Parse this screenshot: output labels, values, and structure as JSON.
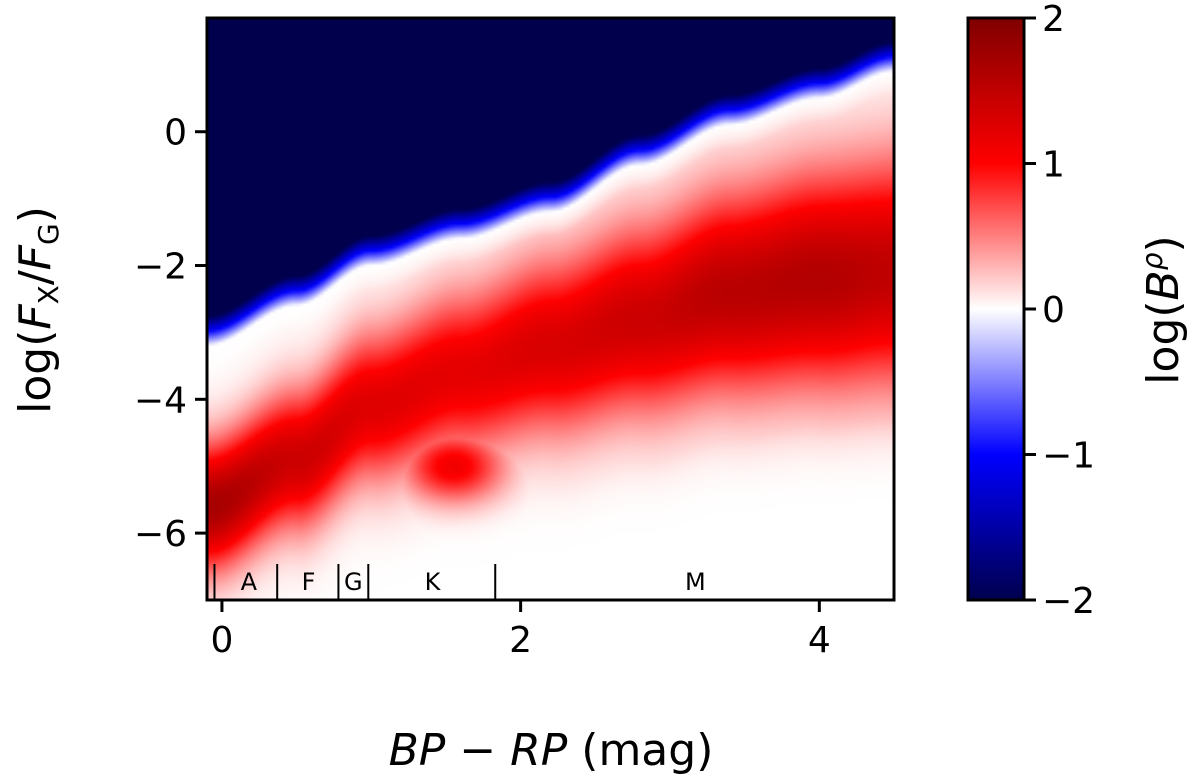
{
  "chart_data": {
    "type": "heatmap",
    "title": "",
    "xlabel": {
      "italic_part": "BP − RP",
      "unit_part": " (mag)"
    },
    "ylabel": {
      "prefix": "log(",
      "numerator": "F",
      "numerator_sub": "X",
      "slash": "/",
      "denominator": "F",
      "denominator_sub": "G",
      "suffix": ")"
    },
    "xlim": [
      -0.1,
      4.5
    ],
    "ylim": [
      -7.0,
      1.7
    ],
    "x_ticks": [
      {
        "value": 0,
        "label": "0"
      },
      {
        "value": 2,
        "label": "2"
      },
      {
        "value": 4,
        "label": "4"
      }
    ],
    "y_ticks": [
      {
        "value": 0,
        "label": "0"
      },
      {
        "value": -2,
        "label": "−2"
      },
      {
        "value": -4,
        "label": "−4"
      },
      {
        "value": -6,
        "label": "−6"
      }
    ],
    "colorbar": {
      "label": {
        "prefix": "log(",
        "base": "B",
        "sup": "ρ",
        "suffix": ")"
      },
      "range": [
        -2,
        2
      ],
      "ticks": [
        {
          "value": 2,
          "label": "2"
        },
        {
          "value": 1,
          "label": "1"
        },
        {
          "value": 0,
          "label": "0"
        },
        {
          "value": -1,
          "label": "−1"
        },
        {
          "value": -2,
          "label": "−2"
        }
      ],
      "colormap": "seismic",
      "colors": {
        "low": "#00004d",
        "mid_low": "#0000ff",
        "center": "#ffffff",
        "mid_high": "#ff0000",
        "high": "#800000"
      }
    },
    "spectral_types": {
      "boundaries": [
        -0.05,
        0.37,
        0.78,
        0.98,
        1.83
      ],
      "labels": [
        {
          "label": "A",
          "x": 0.18
        },
        {
          "label": "F",
          "x": 0.58
        },
        {
          "label": "G",
          "x": 0.88
        },
        {
          "label": "K",
          "x": 1.41
        },
        {
          "label": "M",
          "x": 3.17
        }
      ]
    },
    "field": {
      "description_points_upper_edge_x": [
        -0.1,
        0.5,
        1.0,
        1.6,
        2.2,
        2.8,
        3.4,
        4.0,
        4.5
      ],
      "upper_edge_y": [
        -3.2,
        -2.6,
        -2.0,
        -1.6,
        -1.2,
        -0.5,
        0.1,
        0.5,
        0.9
      ],
      "ridge_y": [
        -5.6,
        -4.9,
        -4.1,
        -3.6,
        -3.2,
        -2.8,
        -2.4,
        -2.2,
        -2.1
      ],
      "ridge_peak_value": [
        1.7,
        1.4,
        1.25,
        1.2,
        1.3,
        1.4,
        1.55,
        1.6,
        1.5
      ]
    }
  }
}
